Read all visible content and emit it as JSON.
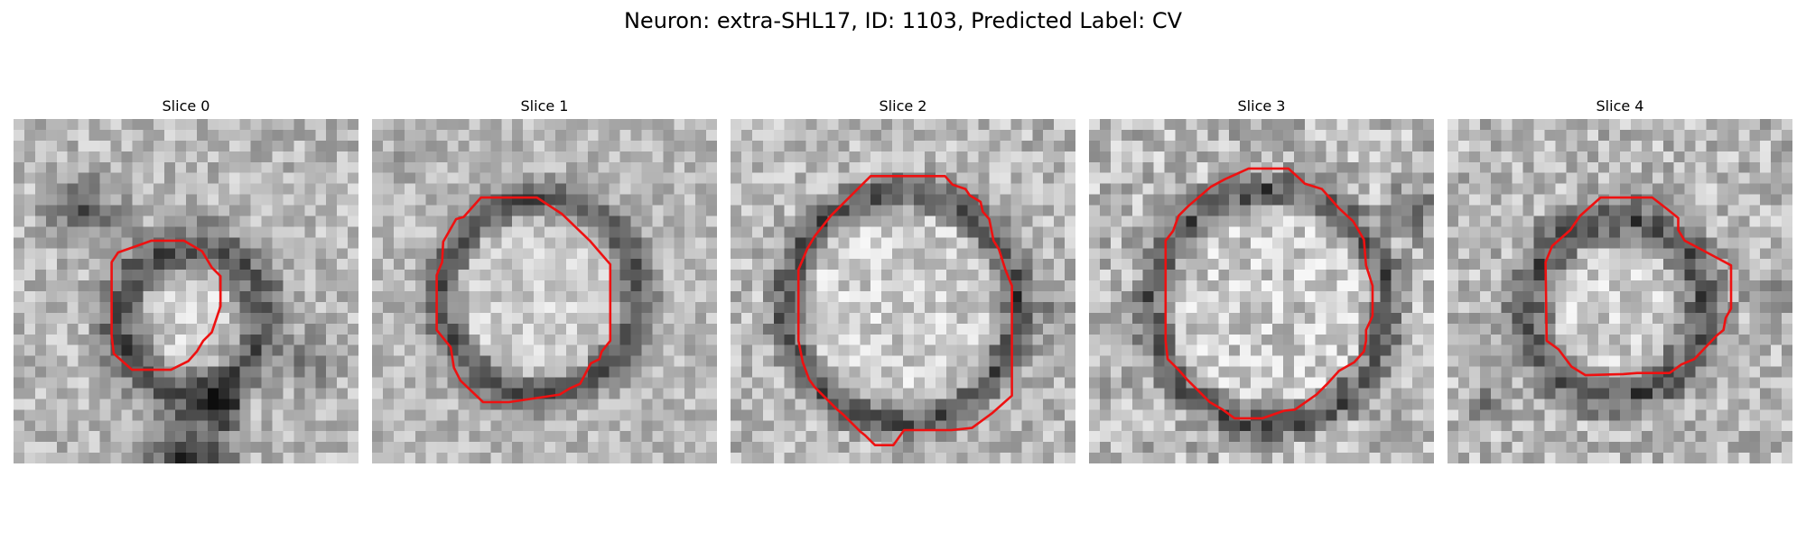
{
  "figure": {
    "title": "Neuron: extra-SHL17, ID: 1103, Predicted Label: CV"
  },
  "panels": [
    {
      "title": "Slice 0"
    },
    {
      "title": "Slice 1"
    },
    {
      "title": "Slice 2"
    },
    {
      "title": "Slice 3"
    },
    {
      "title": "Slice 4"
    }
  ],
  "contour_color": "#ee1111",
  "colormap": "grayscale"
}
